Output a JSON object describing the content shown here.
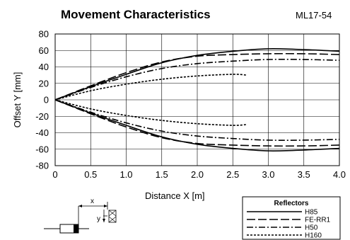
{
  "chart_data": {
    "type": "line",
    "title": "Movement Characteristics",
    "model": "ML17-54",
    "xlabel": "Distance X [m]",
    "ylabel": "Offset Y [mm]",
    "xlim": [
      0,
      4.0
    ],
    "ylim": [
      -80,
      80
    ],
    "x_ticks": [
      "0",
      "0.5",
      "1.0",
      "1.5",
      "2.0",
      "2.5",
      "3.0",
      "3.5",
      "4.0"
    ],
    "y_ticks": [
      "80",
      "60",
      "40",
      "20",
      "0",
      "-20",
      "-40",
      "-60",
      "-80"
    ],
    "grid": true,
    "legend": {
      "title": "Reflectors",
      "placement": "bottom-right"
    },
    "series": [
      {
        "name": "H85",
        "dash": "solid",
        "x": [
          0,
          0.5,
          1.0,
          1.5,
          2.0,
          2.5,
          3.0,
          3.5,
          4.0
        ],
        "upper": [
          0,
          16,
          31,
          45,
          54,
          59,
          62,
          61,
          59
        ],
        "lower": [
          0,
          -16,
          -31,
          -45,
          -54,
          -59,
          -62,
          -61,
          -59
        ]
      },
      {
        "name": "FE-RR1",
        "dash": "longdash",
        "x": [
          0,
          0.5,
          1.0,
          1.5,
          2.0,
          2.5,
          3.0,
          3.5,
          4.0
        ],
        "upper": [
          0,
          17,
          33,
          46,
          53,
          55,
          56,
          56,
          55
        ],
        "lower": [
          0,
          -17,
          -33,
          -46,
          -53,
          -55,
          -56,
          -56,
          -55
        ]
      },
      {
        "name": "H50",
        "dash": "dashdot",
        "x": [
          0,
          0.5,
          1.0,
          1.5,
          2.0,
          2.5,
          3.0,
          3.5,
          4.0
        ],
        "upper": [
          0,
          15,
          28,
          38,
          44,
          47,
          49,
          49,
          48
        ],
        "lower": [
          0,
          -15,
          -28,
          -38,
          -44,
          -47,
          -49,
          -49,
          -48
        ]
      },
      {
        "name": "H160",
        "dash": "dotted",
        "x": [
          0,
          0.5,
          1.0,
          1.5,
          2.0,
          2.5,
          2.7
        ],
        "upper": [
          0,
          11,
          19,
          25,
          29,
          31,
          30
        ],
        "lower": [
          0,
          -11,
          -19,
          -25,
          -29,
          -31,
          -30
        ]
      }
    ]
  },
  "diagram": {
    "x_label": "x",
    "y_label": "y"
  }
}
